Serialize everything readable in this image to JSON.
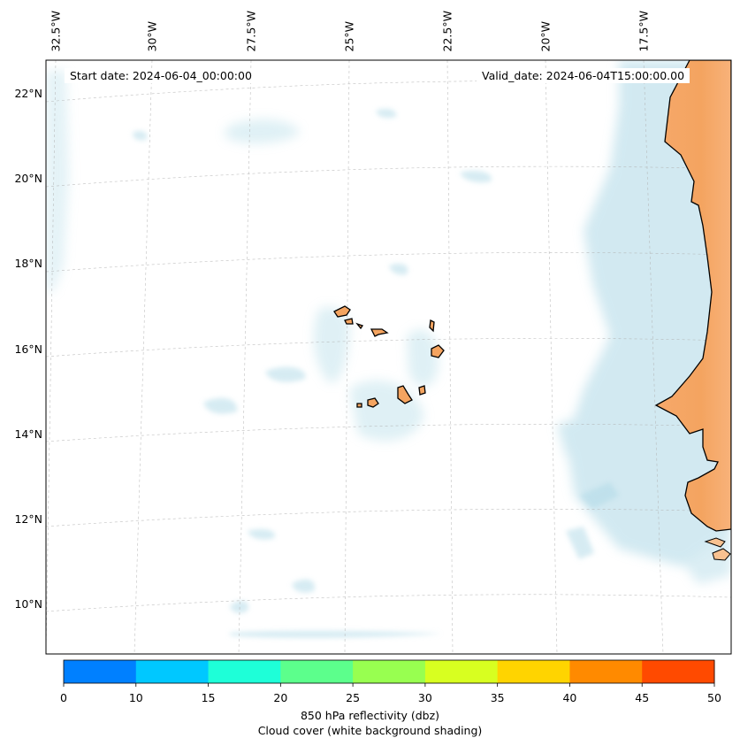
{
  "map": {
    "start_label": "Start date: 2024-06-04_00:00:00",
    "valid_label": "Valid_date: 2024-06-04T15:00:00.00",
    "longitude_labels": [
      "32.5°W",
      "30°W",
      "27.5°W",
      "25°W",
      "22.5°W",
      "20°W",
      "17.5°W"
    ],
    "latitude_labels": [
      "22°N",
      "20°N",
      "18°N",
      "16°N",
      "14°N",
      "12°N",
      "10°N"
    ],
    "land_color": "#f4a460",
    "cloud_color": "#add8e6",
    "region": "Cape Verde islands and West African coast"
  },
  "colorbar": {
    "tick_labels": [
      "0",
      "10",
      "15",
      "20",
      "25",
      "30",
      "35",
      "40",
      "45",
      "50"
    ],
    "colors": [
      "#0080ff",
      "#00c8ff",
      "#1effd8",
      "#5cff8c",
      "#98ff50",
      "#d8ff20",
      "#ffd400",
      "#ff8a00",
      "#ff4a00"
    ],
    "label_line1": "850 hPa reflectivity (dbz)",
    "label_line2": "Cloud cover (white background shading)"
  }
}
